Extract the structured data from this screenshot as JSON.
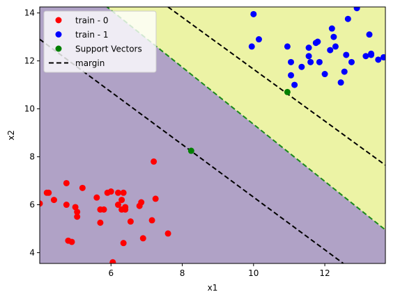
{
  "chart_data": {
    "type": "scatter",
    "title": "",
    "xlabel": "x1",
    "ylabel": "x2",
    "xlim": [
      4.0,
      13.7
    ],
    "ylim": [
      3.55,
      14.25
    ],
    "xticks": [
      6,
      8,
      10,
      12
    ],
    "yticks": [
      4,
      6,
      8,
      10,
      12,
      14
    ],
    "grid": false,
    "legend_position": "top-left",
    "regions": [
      {
        "name": "class-0-region",
        "color": "#b0a2c6"
      },
      {
        "name": "class-1-region",
        "color": "#ecf3a5"
      }
    ],
    "decision_boundary": {
      "color": "#1a8a1a",
      "points": [
        [
          4.0,
          16.5
        ],
        [
          13.7,
          4.95
        ]
      ]
    },
    "margin_lines": [
      {
        "points": [
          [
            4.0,
            12.9
          ],
          [
            12.52,
            3.55
          ]
        ]
      },
      {
        "points": [
          [
            7.6,
            14.25
          ],
          [
            13.7,
            7.65
          ]
        ]
      }
    ],
    "series": [
      {
        "name": "train - 0",
        "color": "#ff0000",
        "points": [
          [
            4.0,
            6.05
          ],
          [
            4.2,
            6.5
          ],
          [
            4.25,
            6.5
          ],
          [
            4.4,
            6.2
          ],
          [
            4.75,
            6.9
          ],
          [
            4.75,
            6.0
          ],
          [
            4.8,
            4.5
          ],
          [
            4.9,
            4.45
          ],
          [
            5.0,
            5.9
          ],
          [
            5.05,
            5.7
          ],
          [
            5.05,
            5.5
          ],
          [
            5.2,
            6.7
          ],
          [
            5.6,
            6.3
          ],
          [
            5.7,
            5.8
          ],
          [
            5.7,
            5.25
          ],
          [
            5.8,
            5.8
          ],
          [
            5.9,
            6.5
          ],
          [
            6.0,
            6.55
          ],
          [
            6.05,
            3.6
          ],
          [
            6.2,
            6.5
          ],
          [
            6.2,
            6.0
          ],
          [
            6.3,
            5.8
          ],
          [
            6.3,
            6.2
          ],
          [
            6.35,
            6.5
          ],
          [
            6.35,
            4.4
          ],
          [
            6.4,
            5.9
          ],
          [
            6.4,
            5.8
          ],
          [
            6.55,
            5.3
          ],
          [
            6.8,
            5.95
          ],
          [
            6.85,
            6.1
          ],
          [
            6.9,
            4.6
          ],
          [
            7.15,
            5.35
          ],
          [
            7.2,
            7.8
          ],
          [
            7.25,
            6.25
          ],
          [
            7.6,
            4.8
          ]
        ]
      },
      {
        "name": "train - 1",
        "color": "#0000ff",
        "points": [
          [
            9.95,
            12.6
          ],
          [
            10.0,
            13.95
          ],
          [
            10.15,
            12.9
          ],
          [
            10.95,
            12.6
          ],
          [
            11.05,
            11.95
          ],
          [
            11.05,
            11.4
          ],
          [
            11.15,
            11.0
          ],
          [
            11.35,
            11.75
          ],
          [
            11.55,
            12.55
          ],
          [
            11.55,
            12.2
          ],
          [
            11.6,
            11.95
          ],
          [
            11.75,
            12.75
          ],
          [
            11.8,
            12.8
          ],
          [
            11.85,
            11.95
          ],
          [
            12.0,
            11.45
          ],
          [
            12.15,
            12.45
          ],
          [
            12.2,
            13.35
          ],
          [
            12.25,
            13.0
          ],
          [
            12.3,
            12.6
          ],
          [
            12.45,
            11.1
          ],
          [
            12.55,
            11.55
          ],
          [
            12.6,
            12.25
          ],
          [
            12.65,
            13.75
          ],
          [
            12.75,
            11.95
          ],
          [
            12.9,
            14.2
          ],
          [
            13.15,
            12.2
          ],
          [
            13.25,
            13.1
          ],
          [
            13.3,
            12.3
          ],
          [
            13.3,
            12.25
          ],
          [
            13.5,
            12.05
          ],
          [
            13.65,
            12.15
          ]
        ]
      },
      {
        "name": "Support Vectors",
        "color": "#007f00",
        "points": [
          [
            8.25,
            8.25
          ],
          [
            10.95,
            10.7
          ]
        ]
      }
    ],
    "legend": [
      {
        "label": "train - 0",
        "kind": "marker",
        "color": "#ff0000"
      },
      {
        "label": "train - 1",
        "kind": "marker",
        "color": "#0000ff"
      },
      {
        "label": "Support Vectors",
        "kind": "marker",
        "color": "#007f00"
      },
      {
        "label": "margin",
        "kind": "dashed-line",
        "color": "#000000"
      }
    ]
  }
}
